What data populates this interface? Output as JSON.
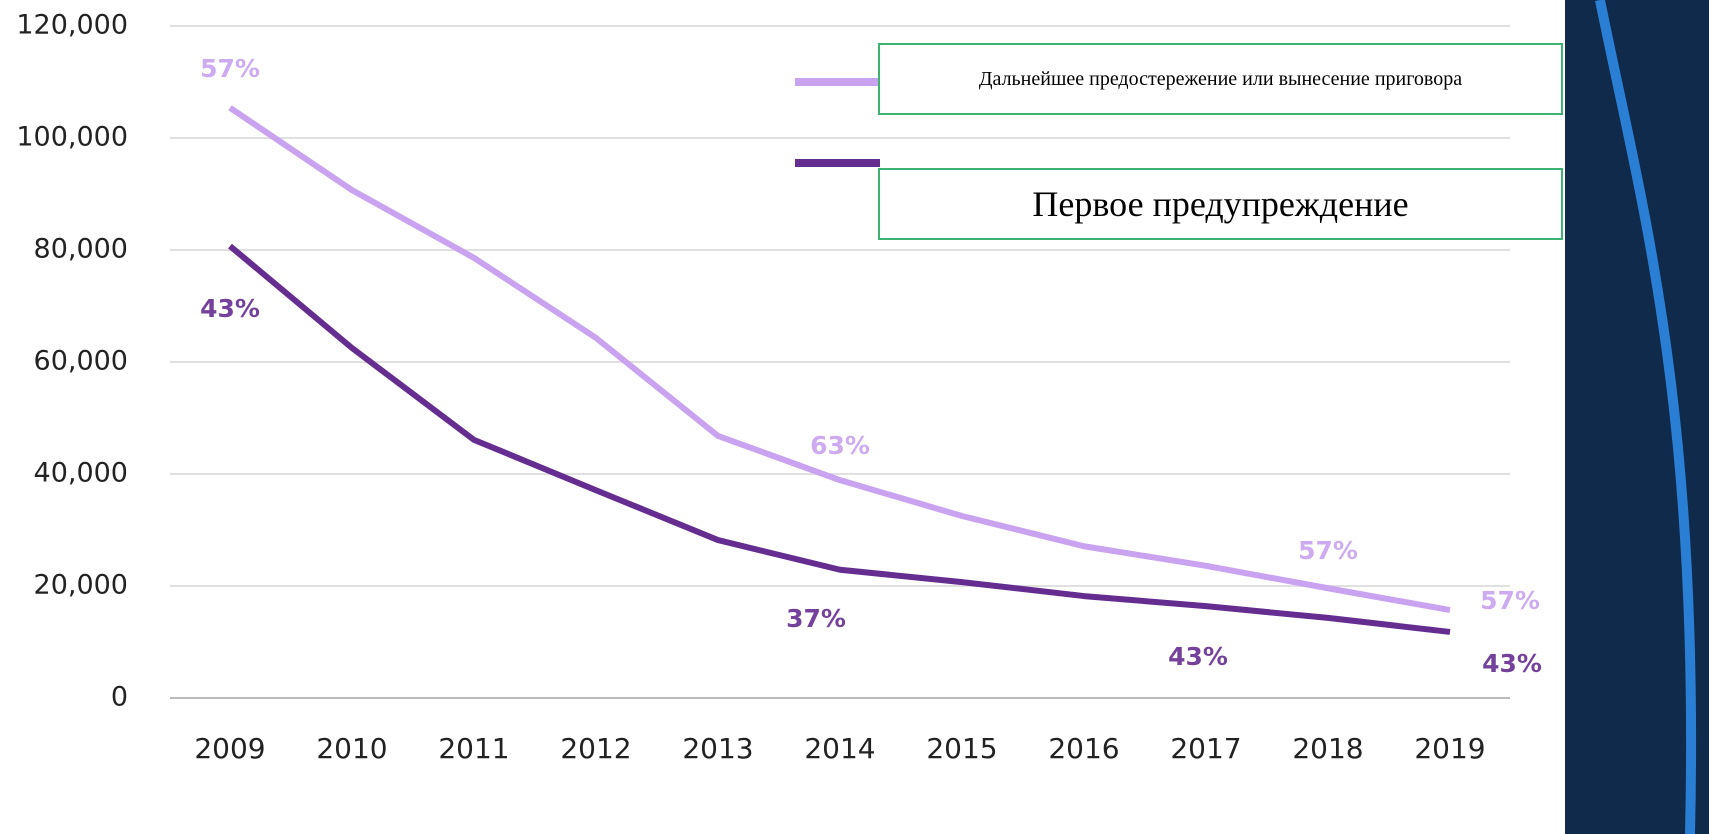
{
  "chart_data": {
    "type": "line",
    "categories": [
      "2009",
      "2010",
      "2011",
      "2012",
      "2013",
      "2014",
      "2015",
      "2016",
      "2017",
      "2018",
      "2019"
    ],
    "series": [
      {
        "name": "Дальнейшее предостережение или вынесение приговора",
        "color": "#c9a2f0",
        "values": [
          105400,
          90700,
          78600,
          64300,
          46800,
          38900,
          32500,
          27100,
          23600,
          19600,
          15700
        ],
        "point_labels": [
          "57%",
          null,
          null,
          null,
          null,
          "63%",
          null,
          null,
          null,
          "57%",
          "57%"
        ]
      },
      {
        "name": "Первое предупреждение",
        "color": "#662d91",
        "values": [
          80700,
          62500,
          46100,
          37100,
          28200,
          22900,
          20700,
          18200,
          16400,
          14300,
          11800
        ],
        "point_labels": [
          "43%",
          null,
          null,
          null,
          null,
          "37%",
          null,
          null,
          null,
          "43%",
          "43%"
        ]
      }
    ],
    "ylim": [
      0,
      120000
    ],
    "yticks": [
      0,
      {
        "value": 20000,
        "label": "20,000"
      },
      {
        "value": 40000,
        "label": "40,000"
      },
      {
        "value": 60000,
        "label": "60,000"
      },
      {
        "value": 80000,
        "label": "80,000"
      },
      {
        "value": 100000,
        "label": "100,000"
      },
      {
        "value": 120000,
        "label": "120,000"
      }
    ],
    "grid": true,
    "legend": "top-right"
  }
}
